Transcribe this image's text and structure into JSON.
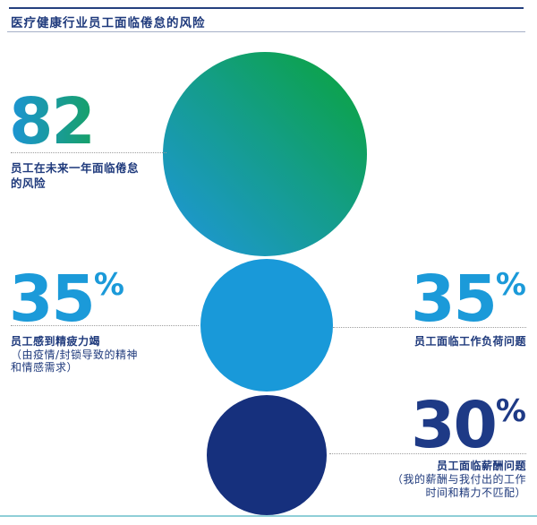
{
  "header": {
    "title": "医疗健康行业员工面临倦怠的风险"
  },
  "stats": [
    {
      "id": "burnout-next-year",
      "value": "82",
      "unit": "%",
      "label_lines": [
        "员工在未来一年面临倦怠",
        "的风险"
      ],
      "note_lines": []
    },
    {
      "id": "exhaustion",
      "value": "35",
      "unit": "%",
      "label_lines": [
        "员工感到精疲力竭"
      ],
      "note_lines": [
        "（由疫情/封锁导致的精神",
        "和情感需求）"
      ]
    },
    {
      "id": "workload",
      "value": "35",
      "unit": "%",
      "label_lines": [
        "员工面临工作负荷问题"
      ],
      "note_lines": []
    },
    {
      "id": "pay",
      "value": "30",
      "unit": "%",
      "label_lines": [
        "员工面临薪酬问题"
      ],
      "note_lines": [
        "（我的薪酬与我付出的工作",
        "时间和精力不匹配）"
      ]
    }
  ],
  "colors": {
    "navy_text": "#1F3A7C",
    "light_blue": "#1B9AD9",
    "green": "#0CA43F",
    "gradient_blue": "#1F96DE",
    "navy_circle": "#16307D",
    "footer_teal": "#8FCFD7",
    "dot_gray": "#9E9E9E"
  },
  "chart_data": {
    "type": "bubble",
    "title": "医疗健康行业员工面临倦怠的风险",
    "legend_position": "none",
    "grid": false,
    "items": [
      {
        "value": 82,
        "unit": "%",
        "label": "员工在未来一年面临倦怠的风险",
        "bubble": "large",
        "bubble_color": "blue-to-green-gradient"
      },
      {
        "value": 35,
        "unit": "%",
        "label": "员工感到精疲力竭（由疫情/封锁导致的精神和情感需求）",
        "bubble": "medium",
        "bubble_color": "#1999D9"
      },
      {
        "value": 35,
        "unit": "%",
        "label": "员工面临工作负荷问题",
        "bubble": "medium",
        "bubble_color": "#1999D9"
      },
      {
        "value": 30,
        "unit": "%",
        "label": "员工面临薪酬问题（我的薪酬与我付出的工作时间和精力不匹配）",
        "bubble": "small",
        "bubble_color": "#16307D"
      }
    ]
  }
}
